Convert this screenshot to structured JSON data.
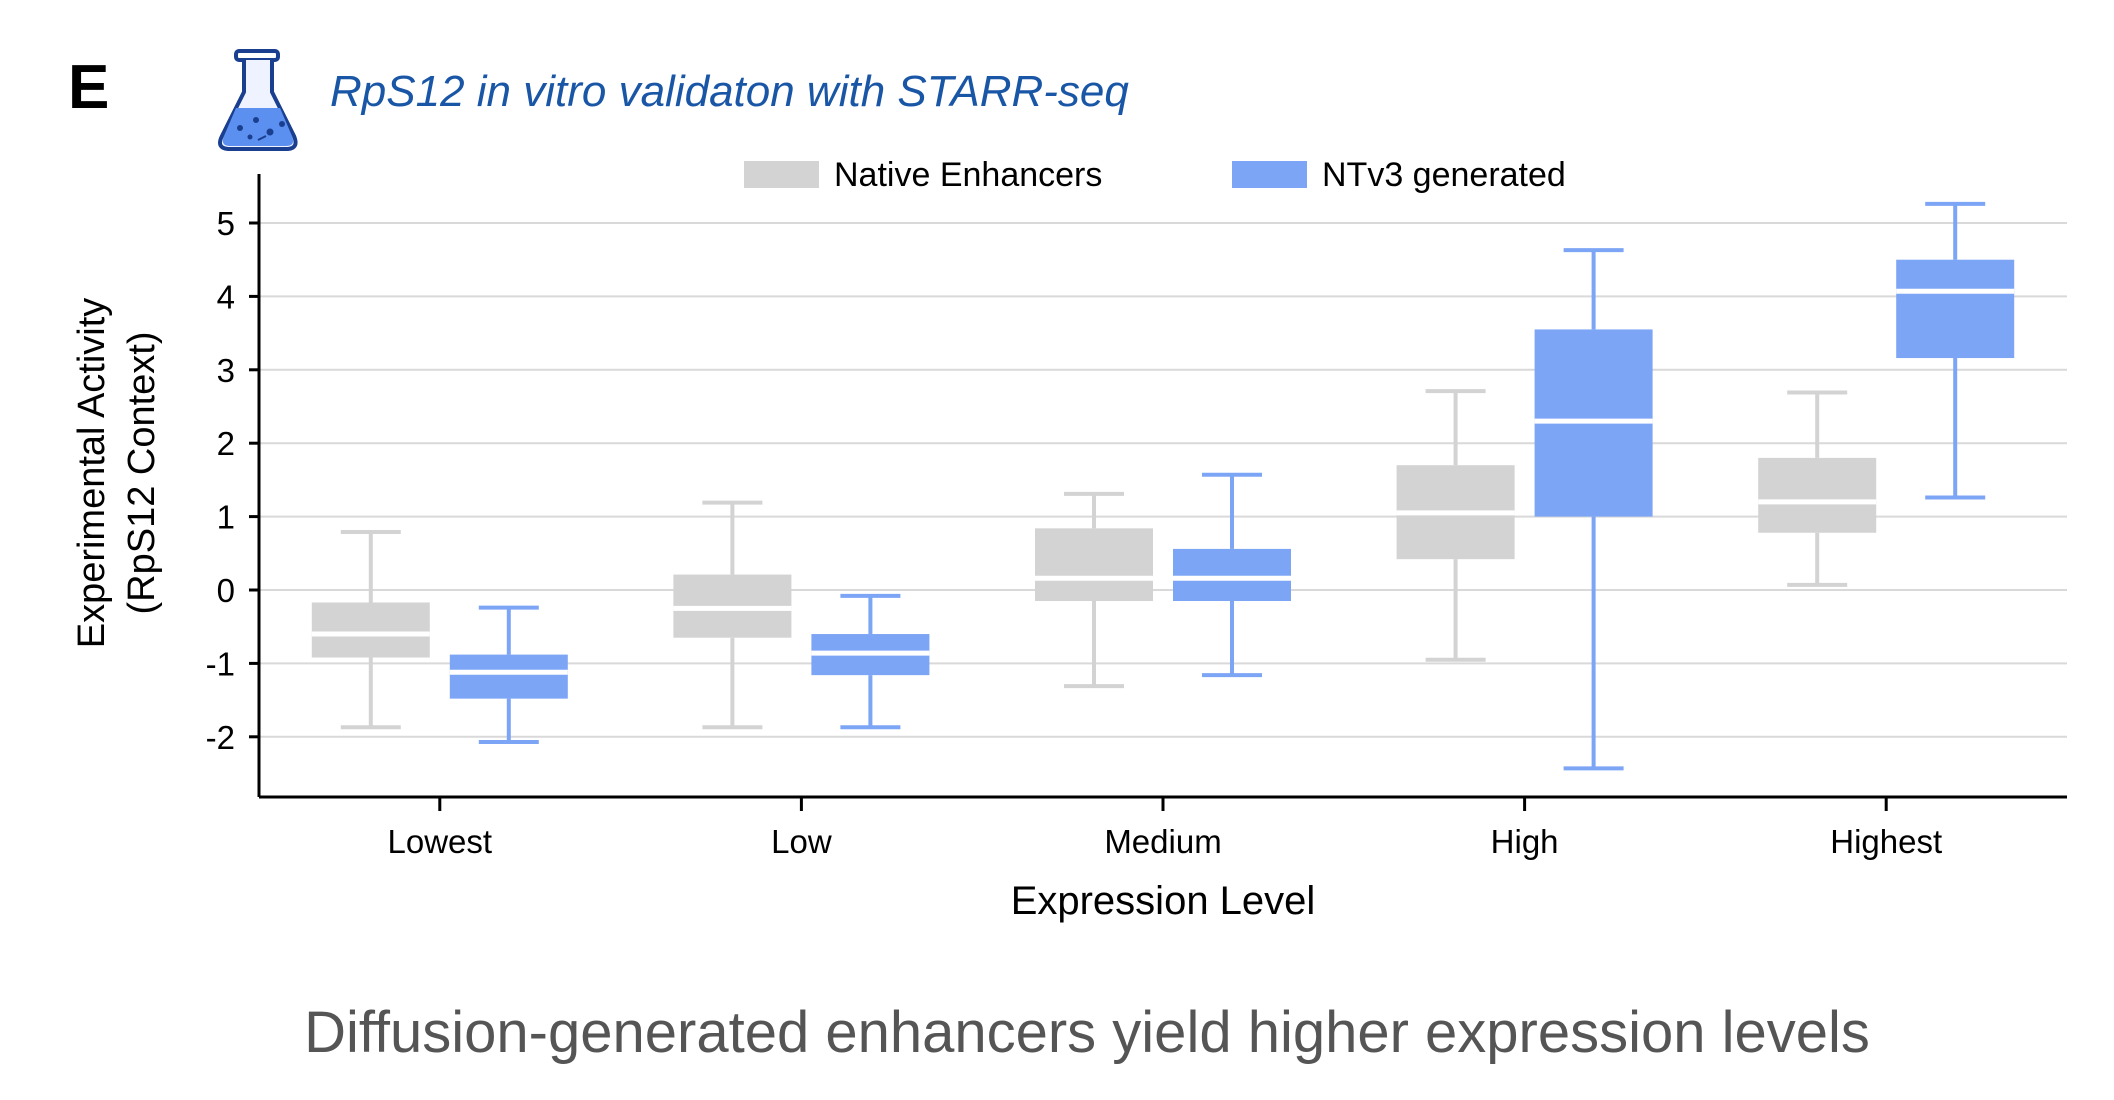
{
  "panel_label": "E",
  "panel_title": "RpS12 in vitro validaton with STARR-seq",
  "caption": "Diffusion-generated enhancers yield higher expression levels",
  "colors": {
    "native": "#d3d3d3",
    "generated": "#7da5f5",
    "title_blue": "#1a56a6",
    "grid": "#d9d9d9",
    "axis": "#000000",
    "caption": "#555555",
    "flask_blue": "#5b8ff0"
  },
  "icons": {
    "flask": "flask-icon"
  },
  "chart_data": {
    "type": "boxplot",
    "xlabel": "Expression Level",
    "ylabel": [
      "Experimental Activity",
      "(RpS12 Context)"
    ],
    "ylim": [
      -2.8,
      5.6
    ],
    "yticks": [
      -2,
      -1,
      0,
      1,
      2,
      3,
      4,
      5
    ],
    "grid": true,
    "legend_position": "top-center",
    "categories": [
      "Lowest",
      "Low",
      "Medium",
      "High",
      "Highest"
    ],
    "series": [
      {
        "name": "Native Enhancers",
        "color": "#d3d3d3",
        "boxes": [
          {
            "whisker_low": -1.87,
            "q1": -0.92,
            "median": -0.6,
            "q3": -0.17,
            "whisker_high": 0.79
          },
          {
            "whisker_low": -1.87,
            "q1": -0.65,
            "median": -0.25,
            "q3": 0.21,
            "whisker_high": 1.19
          },
          {
            "whisker_low": -1.31,
            "q1": -0.15,
            "median": 0.16,
            "q3": 0.84,
            "whisker_high": 1.31
          },
          {
            "whisker_low": -0.95,
            "q1": 0.42,
            "median": 1.05,
            "q3": 1.7,
            "whisker_high": 2.71
          },
          {
            "whisker_low": 0.07,
            "q1": 0.78,
            "median": 1.2,
            "q3": 1.8,
            "whisker_high": 2.69
          }
        ]
      },
      {
        "name": "NTv3 generated",
        "color": "#7da5f5",
        "boxes": [
          {
            "whisker_low": -2.07,
            "q1": -1.48,
            "median": -1.12,
            "q3": -0.88,
            "whisker_high": -0.24
          },
          {
            "whisker_low": -1.87,
            "q1": -1.16,
            "median": -0.86,
            "q3": -0.6,
            "whisker_high": -0.08
          },
          {
            "whisker_low": -1.16,
            "q1": -0.15,
            "median": 0.16,
            "q3": 0.56,
            "whisker_high": 1.57
          },
          {
            "whisker_low": -2.43,
            "q1": 1.0,
            "median": 2.3,
            "q3": 3.55,
            "whisker_high": 4.63
          },
          {
            "whisker_low": 1.26,
            "q1": 3.16,
            "median": 4.07,
            "q3": 4.5,
            "whisker_high": 5.26
          }
        ]
      }
    ]
  }
}
